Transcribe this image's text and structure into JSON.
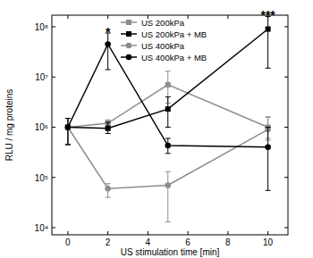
{
  "chart_data": {
    "type": "line",
    "x_label": "US stimulation time [min]",
    "y_label": "RLU / mg proteins",
    "log": "y",
    "legend": "upper left",
    "grid": false,
    "x": [
      0,
      2,
      5,
      10
    ],
    "xlim": [
      -0.8,
      11
    ],
    "xticks": [
      0,
      2,
      4,
      6,
      8,
      10
    ],
    "ylim": [
      7200,
      170000000
    ],
    "yticks": [
      {
        "value": 10000,
        "label": "10⁴"
      },
      {
        "value": 100000,
        "label": "10⁵"
      },
      {
        "value": 1000000,
        "label": "10⁶"
      },
      {
        "value": 10000000,
        "label": "10⁷"
      },
      {
        "value": 100000000,
        "label": "10⁸"
      }
    ],
    "series": [
      {
        "name": "US 200kPa",
        "color": "#8c8c8c",
        "marker": "square",
        "values": [
          1000000,
          1200000,
          7000000,
          1000000
        ],
        "errors": [
          [
            550000,
            500000
          ],
          [
            300000,
            200000
          ],
          [
            4000000,
            6000000
          ],
          [
            400000,
            600000
          ]
        ]
      },
      {
        "name": "US 200kPa + MB",
        "color": "#000000",
        "marker": "square",
        "values": [
          1000000,
          950000,
          2300000,
          90000000
        ],
        "errors": [
          [
            550000,
            500000
          ],
          [
            200000,
            300000
          ],
          [
            1300000,
            1700000
          ],
          [
            75000000,
            70000000
          ]
        ]
      },
      {
        "name": "US 400kPa",
        "color": "#8c8c8c",
        "marker": "circle",
        "values": [
          1000000,
          60000,
          70000,
          900000
        ],
        "errors": [
          [
            550000,
            500000
          ],
          [
            20000,
            15000
          ],
          [
            57000,
            60000
          ],
          [
            350000,
            700000
          ]
        ]
      },
      {
        "name": "US 400kPa + MB",
        "color": "#000000",
        "marker": "circle",
        "values": [
          1000000,
          45000000,
          430000,
          400000
        ],
        "errors": [
          [
            550000,
            500000
          ],
          [
            31000000,
            30000000
          ],
          [
            130000,
            170000
          ],
          [
            345000,
            600000
          ]
        ]
      }
    ],
    "annotations": [
      {
        "text": "*",
        "x": 2
      },
      {
        "text": "***",
        "x": 10
      }
    ]
  }
}
